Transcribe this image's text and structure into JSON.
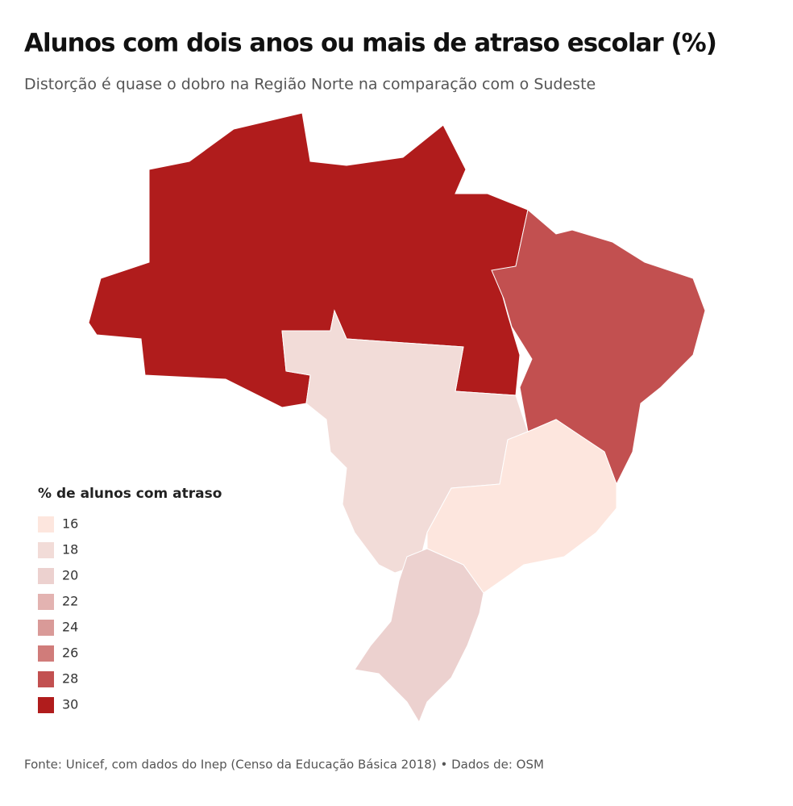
{
  "title": "Alunos com dois anos ou mais de atraso escolar (%)",
  "subtitle": "Distorção é quase o dobro na Região Norte na comparação com o Sudeste",
  "map": {
    "values": [
      30,
      28,
      18,
      16,
      20
    ]
  },
  "legend": {
    "title": "% de alunos com atraso",
    "items": [
      {
        "value": 16,
        "color": "#fde6de"
      },
      {
        "value": 18,
        "color": "#f2dcd8"
      },
      {
        "value": 20,
        "color": "#ecd1cf"
      },
      {
        "value": 22,
        "color": "#e3b3b1"
      },
      {
        "value": 24,
        "color": "#d99a98"
      },
      {
        "value": 26,
        "color": "#d07c7a"
      },
      {
        "value": 28,
        "color": "#c25050"
      },
      {
        "value": 30,
        "color": "#b01c1c"
      }
    ]
  },
  "source": "Fonte: Unicef, com dados do Inep (Censo da Educação Básica 2018) • Dados de: OSM"
}
